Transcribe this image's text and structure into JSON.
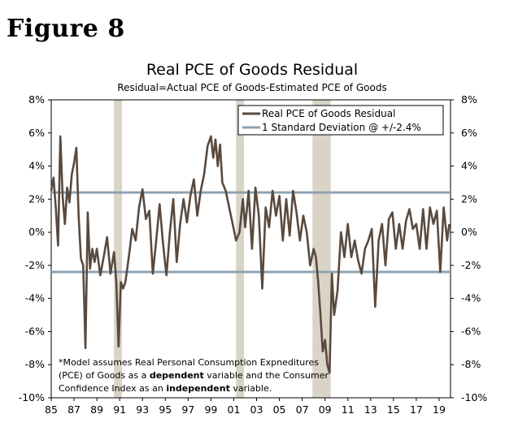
{
  "figure_label": "Figure 8",
  "chart_data": {
    "type": "line",
    "title": "Real PCE of Goods Residual",
    "subtitle": "Residual=Actual PCE of Goods-Estimated PCE of Goods",
    "ylim": [
      -10,
      8
    ],
    "y_ticks": [
      "8%",
      "6%",
      "4%",
      "2%",
      "0%",
      "-2%",
      "-4%",
      "-6%",
      "-8%",
      "-10%"
    ],
    "y_tick_values": [
      8,
      6,
      4,
      2,
      0,
      -2,
      -4,
      -6,
      -8,
      -10
    ],
    "xlim": [
      1985,
      2020
    ],
    "x_ticks": [
      "85",
      "87",
      "89",
      "91",
      "93",
      "95",
      "97",
      "99",
      "01",
      "03",
      "05",
      "07",
      "09",
      "11",
      "13",
      "15",
      "17",
      "19"
    ],
    "x_tick_values": [
      1985,
      1987,
      1989,
      1991,
      1993,
      1995,
      1997,
      1999,
      2001,
      2003,
      2005,
      2007,
      2009,
      2011,
      2013,
      2015,
      2017,
      2019
    ],
    "recessions": [
      [
        1990.5,
        1991.2
      ],
      [
        2001.2,
        2001.9
      ],
      [
        2007.9,
        2009.5
      ]
    ],
    "series": [
      {
        "name": "Real PCE of Goods Residual",
        "color": "#594a3f",
        "x": [
          1985.0,
          1985.2,
          1985.4,
          1985.6,
          1985.8,
          1986.0,
          1986.2,
          1986.4,
          1986.6,
          1986.8,
          1987.0,
          1987.2,
          1987.4,
          1987.6,
          1987.8,
          1988.0,
          1988.2,
          1988.4,
          1988.6,
          1988.8,
          1989.0,
          1989.3,
          1989.6,
          1989.9,
          1990.2,
          1990.5,
          1990.7,
          1990.9,
          1991.1,
          1991.3,
          1991.5,
          1991.8,
          1992.1,
          1992.4,
          1992.7,
          1993.0,
          1993.3,
          1993.6,
          1993.9,
          1994.2,
          1994.5,
          1994.8,
          1995.1,
          1995.4,
          1995.7,
          1996.0,
          1996.3,
          1996.6,
          1996.9,
          1997.2,
          1997.5,
          1997.8,
          1998.1,
          1998.4,
          1998.7,
          1999.0,
          1999.2,
          1999.4,
          1999.6,
          1999.8,
          2000.0,
          2000.3,
          2000.6,
          2000.9,
          2001.2,
          2001.5,
          2001.8,
          2002.0,
          2002.3,
          2002.6,
          2002.9,
          2003.2,
          2003.5,
          2003.8,
          2004.1,
          2004.4,
          2004.7,
          2005.0,
          2005.3,
          2005.6,
          2005.9,
          2006.2,
          2006.5,
          2006.8,
          2007.1,
          2007.4,
          2007.7,
          2008.0,
          2008.2,
          2008.4,
          2008.6,
          2008.8,
          2009.0,
          2009.2,
          2009.4,
          2009.6,
          2009.8,
          2010.1,
          2010.4,
          2010.7,
          2011.0,
          2011.3,
          2011.6,
          2011.9,
          2012.2,
          2012.5,
          2012.8,
          2013.1,
          2013.4,
          2013.7,
          2014.0,
          2014.3,
          2014.6,
          2014.9,
          2015.2,
          2015.5,
          2015.8,
          2016.1,
          2016.4,
          2016.7,
          2017.0,
          2017.3,
          2017.6,
          2017.9,
          2018.2,
          2018.5,
          2018.8,
          2019.1,
          2019.4,
          2019.7,
          2019.9
        ],
        "values": [
          2.5,
          3.3,
          1.5,
          -0.8,
          5.8,
          2.2,
          0.5,
          2.7,
          1.8,
          3.5,
          4.2,
          5.1,
          1.0,
          -1.6,
          -2.0,
          -7.0,
          1.2,
          -2.2,
          -1.0,
          -1.8,
          -1.0,
          -2.6,
          -1.5,
          -0.3,
          -2.5,
          -1.2,
          -3.0,
          -6.9,
          -3.0,
          -3.4,
          -3.0,
          -1.5,
          0.2,
          -0.5,
          1.5,
          2.6,
          0.8,
          1.3,
          -2.5,
          -0.5,
          1.7,
          -0.7,
          -2.6,
          0.0,
          2.0,
          -1.8,
          0.5,
          2.0,
          0.6,
          2.2,
          3.2,
          1.0,
          2.5,
          3.5,
          5.2,
          5.8,
          4.5,
          5.6,
          4.0,
          5.3,
          3.0,
          2.5,
          1.5,
          0.5,
          -0.5,
          0.0,
          2.0,
          0.3,
          2.5,
          -1.0,
          2.7,
          1.0,
          -3.4,
          1.5,
          0.3,
          2.5,
          1.0,
          2.2,
          -0.5,
          2.0,
          -0.2,
          2.5,
          1.2,
          -0.5,
          1.0,
          0.0,
          -2.0,
          -1.0,
          -1.5,
          -3.0,
          -5.0,
          -7.2,
          -6.5,
          -8.0,
          -8.5,
          -2.5,
          -5.0,
          -3.5,
          0.0,
          -1.5,
          0.5,
          -1.5,
          -0.5,
          -1.7,
          -2.5,
          -1.0,
          -0.5,
          0.2,
          -4.5,
          -0.5,
          0.5,
          -2.0,
          0.8,
          1.2,
          -1.0,
          0.5,
          -1.0,
          0.7,
          1.4,
          0.2,
          0.5,
          -1.0,
          1.4,
          -1.0,
          1.5,
          0.5,
          1.3,
          -2.4,
          1.5,
          -0.5,
          0.5
        ]
      },
      {
        "name": "1 Standard Deviation @ +/-2.4%",
        "color": "#8ea3b2",
        "upper": 2.4,
        "lower": -2.4
      }
    ],
    "legend_position": "top-right",
    "note_lines": [
      [
        "*Model assumes Real Personal Consumption Expneditures"
      ],
      [
        "(PCE) of Goods as a ",
        "dependent",
        " variable and the Consumer"
      ],
      [
        "Confidence Index as an ",
        "independent",
        " variable."
      ]
    ],
    "colors": {
      "recession": "#d9d4c6",
      "residual": "#594a3f",
      "std_line": "#8ea3b2",
      "axis": "#000000"
    }
  }
}
